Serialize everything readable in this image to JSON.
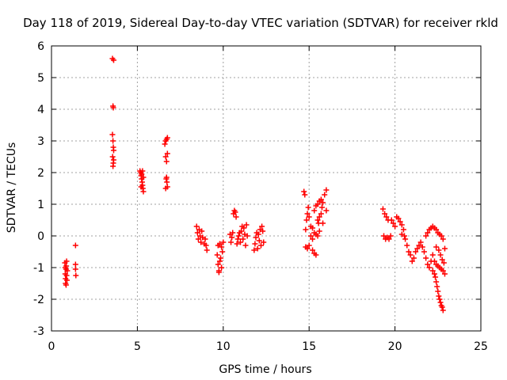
{
  "chart_data": {
    "type": "scatter",
    "title": "Day 118 of 2019, Sidereal Day-to-day VTEC variation (SDTVAR) for receiver rkld",
    "xlabel": "GPS time / hours",
    "ylabel": "SDTVAR / TECUs",
    "xlim": [
      0,
      25
    ],
    "ylim": [
      -3,
      6
    ],
    "xticks": [
      "0",
      "5",
      "10",
      "15",
      "20",
      "25"
    ],
    "yticks": [
      "-3",
      "-2",
      "-1",
      "0",
      "1",
      "2",
      "3",
      "4",
      "5",
      "6"
    ],
    "grid": true,
    "marker": "+",
    "series_color": "#ff0000",
    "series": [
      {
        "name": "rkld",
        "points": [
          [
            0.78,
            -0.85
          ],
          [
            0.8,
            -1.0
          ],
          [
            0.8,
            -1.2
          ],
          [
            0.82,
            -1.35
          ],
          [
            0.82,
            -1.5
          ],
          [
            0.85,
            -1.05
          ],
          [
            0.85,
            -1.55
          ],
          [
            0.86,
            -0.95
          ],
          [
            0.88,
            -0.8
          ],
          [
            0.88,
            -1.25
          ],
          [
            0.9,
            -1.4
          ],
          [
            0.92,
            -1.1
          ],
          [
            1.4,
            -0.3
          ],
          [
            1.4,
            -0.9
          ],
          [
            1.4,
            -1.05
          ],
          [
            1.42,
            -1.25
          ],
          [
            3.55,
            5.6
          ],
          [
            3.62,
            5.55
          ],
          [
            3.58,
            4.1
          ],
          [
            3.6,
            4.05
          ],
          [
            3.55,
            3.2
          ],
          [
            3.58,
            3.0
          ],
          [
            3.6,
            2.8
          ],
          [
            3.62,
            2.7
          ],
          [
            3.56,
            2.5
          ],
          [
            3.6,
            2.3
          ],
          [
            3.58,
            2.2
          ],
          [
            3.62,
            2.4
          ],
          [
            5.15,
            2.05
          ],
          [
            5.2,
            2.0
          ],
          [
            5.22,
            1.9
          ],
          [
            5.25,
            1.8
          ],
          [
            5.28,
            1.7
          ],
          [
            5.3,
            1.6
          ],
          [
            5.32,
            1.5
          ],
          [
            5.35,
            1.4
          ],
          [
            5.25,
            1.95
          ],
          [
            5.3,
            2.05
          ],
          [
            5.35,
            1.85
          ],
          [
            5.22,
            1.55
          ],
          [
            6.6,
            2.9
          ],
          [
            6.65,
            3.0
          ],
          [
            6.7,
            3.05
          ],
          [
            6.75,
            3.1
          ],
          [
            6.65,
            2.5
          ],
          [
            6.7,
            2.35
          ],
          [
            6.75,
            2.6
          ],
          [
            6.68,
            1.8
          ],
          [
            6.72,
            1.7
          ],
          [
            6.75,
            1.55
          ],
          [
            6.65,
            1.5
          ],
          [
            6.7,
            1.85
          ],
          [
            8.45,
            0.3
          ],
          [
            8.5,
            0.1
          ],
          [
            8.55,
            -0.1
          ],
          [
            8.6,
            0.2
          ],
          [
            8.65,
            0.0
          ],
          [
            8.7,
            -0.2
          ],
          [
            8.75,
            0.15
          ],
          [
            8.8,
            -0.05
          ],
          [
            8.9,
            -0.25
          ],
          [
            8.95,
            -0.1
          ],
          [
            9.0,
            -0.3
          ],
          [
            9.05,
            -0.45
          ],
          [
            9.65,
            -0.6
          ],
          [
            9.7,
            -0.9
          ],
          [
            9.75,
            -1.1
          ],
          [
            9.8,
            -0.8
          ],
          [
            9.85,
            -0.7
          ],
          [
            9.9,
            -1.0
          ],
          [
            9.95,
            -0.5
          ],
          [
            10.0,
            -0.2
          ],
          [
            9.8,
            -0.25
          ],
          [
            9.7,
            -0.3
          ],
          [
            9.9,
            -0.35
          ],
          [
            9.75,
            -1.15
          ],
          [
            10.4,
            0.05
          ],
          [
            10.45,
            -0.2
          ],
          [
            10.5,
            -0.05
          ],
          [
            10.55,
            0.1
          ],
          [
            10.6,
            0.7
          ],
          [
            10.65,
            0.8
          ],
          [
            10.7,
            0.75
          ],
          [
            10.75,
            0.6
          ],
          [
            10.8,
            -0.25
          ],
          [
            10.85,
            -0.1
          ],
          [
            10.9,
            0.0
          ],
          [
            10.95,
            0.1
          ],
          [
            11.0,
            -0.2
          ],
          [
            11.05,
            0.15
          ],
          [
            11.1,
            0.3
          ],
          [
            11.15,
            -0.1
          ],
          [
            11.2,
            0.25
          ],
          [
            11.25,
            0.05
          ],
          [
            11.3,
            -0.3
          ],
          [
            11.35,
            0.35
          ],
          [
            11.4,
            0.0
          ],
          [
            11.8,
            -0.45
          ],
          [
            11.85,
            -0.25
          ],
          [
            11.9,
            -0.05
          ],
          [
            11.95,
            0.1
          ],
          [
            12.0,
            -0.4
          ],
          [
            12.05,
            0.05
          ],
          [
            12.1,
            -0.15
          ],
          [
            12.15,
            0.2
          ],
          [
            12.2,
            -0.3
          ],
          [
            12.25,
            0.3
          ],
          [
            12.3,
            0.15
          ],
          [
            12.35,
            -0.2
          ],
          [
            14.7,
            1.4
          ],
          [
            14.75,
            1.3
          ],
          [
            14.8,
            0.2
          ],
          [
            14.85,
            0.5
          ],
          [
            14.9,
            0.7
          ],
          [
            14.95,
            0.9
          ],
          [
            15.0,
            0.6
          ],
          [
            14.8,
            -0.35
          ],
          [
            14.9,
            -0.4
          ],
          [
            15.0,
            -0.3
          ],
          [
            15.1,
            0.0
          ],
          [
            15.2,
            -0.1
          ],
          [
            15.3,
            0.8
          ],
          [
            15.4,
            0.95
          ],
          [
            15.5,
            1.0
          ],
          [
            15.6,
            1.1
          ],
          [
            15.7,
            1.15
          ],
          [
            15.8,
            1.05
          ],
          [
            15.9,
            1.3
          ],
          [
            16.0,
            1.45
          ],
          [
            15.5,
            0.5
          ],
          [
            15.6,
            0.6
          ],
          [
            15.7,
            0.7
          ],
          [
            15.8,
            0.4
          ],
          [
            15.1,
            0.3
          ],
          [
            15.2,
            0.25
          ],
          [
            15.3,
            0.1
          ],
          [
            15.4,
            0.05
          ],
          [
            15.5,
            0.0
          ],
          [
            15.6,
            0.15
          ],
          [
            15.2,
            -0.45
          ],
          [
            15.3,
            -0.55
          ],
          [
            15.4,
            -0.6
          ],
          [
            15.55,
            0.4
          ],
          [
            15.75,
            0.9
          ],
          [
            16.0,
            0.8
          ],
          [
            19.3,
            0.85
          ],
          [
            19.4,
            0.7
          ],
          [
            19.5,
            0.6
          ],
          [
            19.6,
            0.5
          ],
          [
            19.35,
            0.0
          ],
          [
            19.45,
            -0.1
          ],
          [
            19.55,
            -0.05
          ],
          [
            19.65,
            -0.1
          ],
          [
            19.8,
            0.5
          ],
          [
            19.9,
            0.4
          ],
          [
            20.0,
            0.3
          ],
          [
            19.75,
            0.0
          ],
          [
            20.1,
            0.6
          ],
          [
            20.2,
            0.55
          ],
          [
            20.3,
            0.45
          ],
          [
            20.4,
            0.35
          ],
          [
            20.5,
            0.2
          ],
          [
            20.55,
            0.0
          ],
          [
            20.6,
            -0.1
          ],
          [
            20.7,
            -0.3
          ],
          [
            20.8,
            -0.5
          ],
          [
            20.9,
            -0.6
          ],
          [
            21.0,
            -0.8
          ],
          [
            20.4,
            0.05
          ],
          [
            21.1,
            -0.7
          ],
          [
            21.2,
            -0.5
          ],
          [
            21.3,
            -0.4
          ],
          [
            21.4,
            -0.3
          ],
          [
            21.5,
            -0.2
          ],
          [
            21.6,
            -0.35
          ],
          [
            21.7,
            -0.5
          ],
          [
            21.8,
            -0.7
          ],
          [
            21.9,
            -0.9
          ],
          [
            22.0,
            -1.0
          ],
          [
            22.1,
            -0.8
          ],
          [
            22.2,
            -0.6
          ],
          [
            21.8,
            0.0
          ],
          [
            21.9,
            0.1
          ],
          [
            22.0,
            0.2
          ],
          [
            22.1,
            0.25
          ],
          [
            22.2,
            0.3
          ],
          [
            22.3,
            0.25
          ],
          [
            22.4,
            0.2
          ],
          [
            22.5,
            0.1
          ],
          [
            22.6,
            0.05
          ],
          [
            22.7,
            0.0
          ],
          [
            22.8,
            -0.1
          ],
          [
            22.9,
            -0.4
          ],
          [
            22.2,
            -1.1
          ],
          [
            22.3,
            -1.2
          ],
          [
            22.35,
            -1.3
          ],
          [
            22.4,
            -1.45
          ],
          [
            22.45,
            -1.6
          ],
          [
            22.5,
            -1.75
          ],
          [
            22.55,
            -1.9
          ],
          [
            22.6,
            -2.0
          ],
          [
            22.65,
            -2.1
          ],
          [
            22.7,
            -2.2
          ],
          [
            22.75,
            -2.25
          ],
          [
            22.8,
            -2.35
          ],
          [
            22.3,
            -0.8
          ],
          [
            22.4,
            -0.9
          ],
          [
            22.5,
            -0.95
          ],
          [
            22.6,
            -1.0
          ],
          [
            22.7,
            -1.05
          ],
          [
            22.8,
            -1.1
          ],
          [
            22.9,
            -1.2
          ],
          [
            22.4,
            -0.35
          ],
          [
            22.55,
            -0.45
          ],
          [
            22.65,
            -0.6
          ],
          [
            22.75,
            -0.75
          ],
          [
            22.85,
            -0.85
          ]
        ]
      }
    ]
  }
}
